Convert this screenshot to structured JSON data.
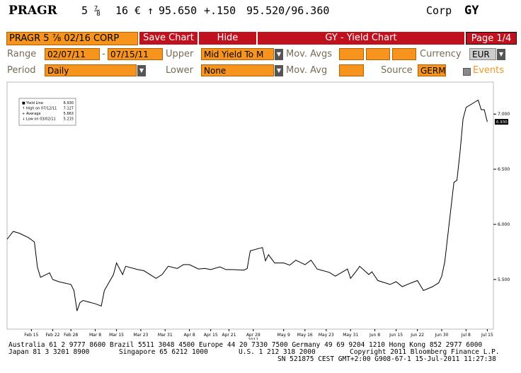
{
  "header": {
    "ticker": "PRAGR",
    "coupon": "5 ⅞",
    "maturity": "16",
    "currency": "€",
    "arrow": "↑",
    "price": "95.650",
    "change": "+.150",
    "bid_ask": "95.520/96.360",
    "market": "Corp",
    "function": "GY"
  },
  "toolbar": {
    "security": "PRAGR 5 ⅞ 02/16 CORP",
    "buttons": [
      "Save Chart",
      "Hide"
    ],
    "title": "GY - Yield Chart",
    "page": "Page 1/4"
  },
  "form": {
    "range_label": "Range",
    "range_from": "02/07/11",
    "range_sep": "-",
    "range_to": "07/15/11",
    "upper_label": "Upper",
    "upper": "Mid Yield To M",
    "mov_avgs_label": "Mov. Avgs",
    "currency_label": "Currency",
    "currency": "EUR",
    "period_label": "Period",
    "period": "Daily",
    "lower_label": "Lower",
    "lower": "None",
    "mov_avg_label": "Mov. Avg",
    "source_label": "Source",
    "source": "GERM",
    "events": "Events"
  },
  "chart_data": {
    "type": "line",
    "legend": [
      {
        "label": "Yield Line",
        "value": "6.930"
      },
      {
        "label": "High on 07/12/11",
        "value": "7.127"
      },
      {
        "label": "Average",
        "value": "5.663"
      },
      {
        "label": "Low on 03/02/11",
        "value": "5.215"
      }
    ],
    "x_year_label": "2011",
    "x": [
      "2011-02-07",
      "2011-02-09",
      "2011-02-11",
      "2011-02-14",
      "2011-02-16",
      "2011-02-17",
      "2011-02-18",
      "2011-02-21",
      "2011-02-22",
      "2011-02-24",
      "2011-02-28",
      "2011-03-01",
      "2011-03-02",
      "2011-03-03",
      "2011-03-04",
      "2011-03-08",
      "2011-03-10",
      "2011-03-11",
      "2011-03-14",
      "2011-03-15",
      "2011-03-17",
      "2011-03-18",
      "2011-03-22",
      "2011-03-24",
      "2011-03-28",
      "2011-03-30",
      "2011-04-01",
      "2011-04-04",
      "2011-04-06",
      "2011-04-08",
      "2011-04-11",
      "2011-04-13",
      "2011-04-15",
      "2011-04-18",
      "2011-04-20",
      "2011-04-22",
      "2011-04-26",
      "2011-04-27",
      "2011-04-28",
      "2011-05-02",
      "2011-05-03",
      "2011-05-04",
      "2011-05-06",
      "2011-05-09",
      "2011-05-11",
      "2011-05-13",
      "2011-05-16",
      "2011-05-18",
      "2011-05-20",
      "2011-05-24",
      "2011-05-26",
      "2011-05-30",
      "2011-05-31",
      "2011-06-02",
      "2011-06-03",
      "2011-06-06",
      "2011-06-07",
      "2011-06-09",
      "2011-06-13",
      "2011-06-15",
      "2011-06-17",
      "2011-06-20",
      "2011-06-22",
      "2011-06-24",
      "2011-06-27",
      "2011-06-29",
      "2011-06-30",
      "2011-07-01",
      "2011-07-04",
      "2011-07-05",
      "2011-07-06",
      "2011-07-07",
      "2011-07-08",
      "2011-07-11",
      "2011-07-12",
      "2011-07-13",
      "2011-07-14",
      "2011-07-15"
    ],
    "series": [
      {
        "name": "Yield Line",
        "color": "#000000",
        "values": [
          5.865,
          5.936,
          5.92,
          5.88,
          5.84,
          5.61,
          5.52,
          5.56,
          5.5,
          5.48,
          5.455,
          5.4,
          5.215,
          5.29,
          5.31,
          5.28,
          5.26,
          5.4,
          5.545,
          5.65,
          5.545,
          5.62,
          5.59,
          5.58,
          5.51,
          5.545,
          5.62,
          5.6,
          5.635,
          5.635,
          5.595,
          5.6,
          5.59,
          5.615,
          5.59,
          5.59,
          5.585,
          5.6,
          5.76,
          5.79,
          5.67,
          5.725,
          5.65,
          5.65,
          5.63,
          5.675,
          5.635,
          5.675,
          5.595,
          5.565,
          5.53,
          5.595,
          5.51,
          5.58,
          5.62,
          5.545,
          5.57,
          5.49,
          5.455,
          5.48,
          5.435,
          5.47,
          5.49,
          5.4,
          5.435,
          5.47,
          5.53,
          5.66,
          6.38,
          6.4,
          6.65,
          6.955,
          7.06,
          7.11,
          7.127,
          7.04,
          7.04,
          6.93
        ]
      }
    ],
    "xlim": [
      "2011-02-07",
      "2011-07-17"
    ],
    "xticks": [
      {
        "value": "2011-02-15",
        "label": "Feb 15"
      },
      {
        "value": "2011-02-22",
        "label": "Feb 22"
      },
      {
        "value": "2011-02-28",
        "label": "Feb 28"
      },
      {
        "value": "2011-03-08",
        "label": "Mar 8"
      },
      {
        "value": "2011-03-15",
        "label": "Mar 15"
      },
      {
        "value": "2011-03-23",
        "label": "Mar 23"
      },
      {
        "value": "2011-03-31",
        "label": "Mar 31"
      },
      {
        "value": "2011-04-08",
        "label": "Apr 8"
      },
      {
        "value": "2011-04-15",
        "label": "Apr 15"
      },
      {
        "value": "2011-04-21",
        "label": "Apr 21"
      },
      {
        "value": "2011-04-29",
        "label": "Apr 29"
      },
      {
        "value": "2011-05-09",
        "label": "May 9"
      },
      {
        "value": "2011-05-16",
        "label": "May 16"
      },
      {
        "value": "2011-05-23",
        "label": "May 23"
      },
      {
        "value": "2011-05-31",
        "label": "May 31"
      },
      {
        "value": "2011-06-08",
        "label": "Jun 8"
      },
      {
        "value": "2011-06-15",
        "label": "Jun 15"
      },
      {
        "value": "2011-06-22",
        "label": "Jun 22"
      },
      {
        "value": "2011-06-30",
        "label": "Jun 30"
      },
      {
        "value": "2011-07-08",
        "label": "Jul 8"
      },
      {
        "value": "2011-07-15",
        "label": "Jul 15"
      }
    ],
    "ylim": [
      5.05,
      7.29
    ],
    "yticks": [
      {
        "value": 5.5,
        "label": "5.500"
      },
      {
        "value": 6,
        "label": "6.000"
      },
      {
        "value": 6.5,
        "label": "6.500"
      },
      {
        "value": 7,
        "label": "7.000"
      }
    ],
    "grid": false
  },
  "footer": {
    "line1": "Australia 61 2 9777 8600 Brazil 5511 3048 4500 Europe 44 20 7330 7500 Germany 49 69 9204 1210 Hong Kong 852 2977 6000",
    "japan": "Japan 81 3 3201 8900",
    "singapore": "Singapore 65 6212 1000",
    "us": "U.S. 1 212 318 2000",
    "copyright": "Copyright 2011 Bloomberg Finance L.P.",
    "line3": "SN 521875 CEST  GMT+2:00 G908-67-1 15-Jul-2011 11:27:38"
  }
}
